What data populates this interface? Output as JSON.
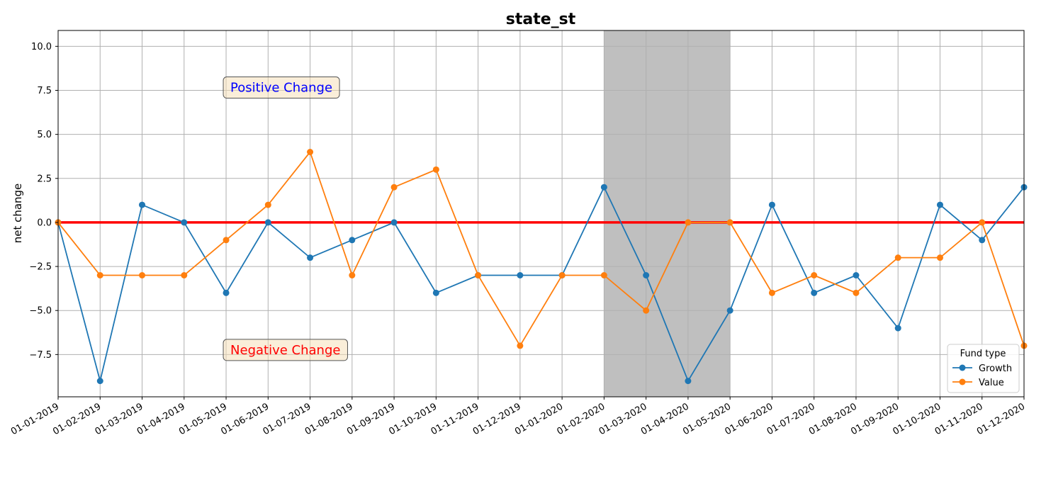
{
  "chart_data": {
    "type": "line",
    "title": "state_st",
    "xlabel": "",
    "ylabel": "net change",
    "x": [
      "01-01-2019",
      "01-02-2019",
      "01-03-2019",
      "01-04-2019",
      "01-05-2019",
      "01-06-2019",
      "01-07-2019",
      "01-08-2019",
      "01-09-2019",
      "01-10-2019",
      "01-11-2019",
      "01-12-2019",
      "01-01-2020",
      "01-02-2020",
      "01-03-2020",
      "01-04-2020",
      "01-05-2020",
      "01-06-2020",
      "01-07-2020",
      "01-08-2020",
      "01-09-2020",
      "01-10-2020",
      "01-11-2020",
      "01-12-2020"
    ],
    "series": [
      {
        "name": "Growth",
        "color": "#1f77b4",
        "values": [
          0,
          -9,
          1,
          0,
          -4,
          0,
          -2,
          -1,
          0,
          -4,
          -3,
          -3,
          -3,
          2,
          -3,
          -9,
          -5,
          1,
          -4,
          -3,
          -6,
          1,
          -1,
          2
        ]
      },
      {
        "name": "Value",
        "color": "#ff7f0e",
        "values": [
          0,
          -3,
          -3,
          -3,
          -1,
          1,
          4,
          -3,
          2,
          3,
          -3,
          -7,
          -3,
          -3,
          -5,
          0,
          0,
          -4,
          -3,
          -4,
          -2,
          -2,
          0,
          -7
        ]
      }
    ],
    "ylim": [
      -9.9,
      10.9
    ],
    "yticks": [
      "10.0",
      "7.5",
      "5.0",
      "2.5",
      "0.0",
      "−2.5",
      "−5.0",
      "−7.5"
    ],
    "ytick_values": [
      10,
      7.5,
      5,
      2.5,
      0,
      -2.5,
      -5,
      -7.5
    ],
    "grid": true,
    "zero_line": {
      "value": 0,
      "color": "#ff0000"
    },
    "shaded_span": {
      "from": "01-02-2020",
      "to": "01-05-2020",
      "color": "#bfbfbf"
    },
    "legend": {
      "title": "Fund type",
      "placement": "bottom-right"
    },
    "annotations": [
      {
        "text": "Positive Change",
        "x": "01-05-2019",
        "y": 7.7,
        "color": "#0000ff"
      },
      {
        "text": "Negative Change",
        "x": "01-05-2019",
        "y": -7.2,
        "color": "#ff0000"
      }
    ]
  }
}
